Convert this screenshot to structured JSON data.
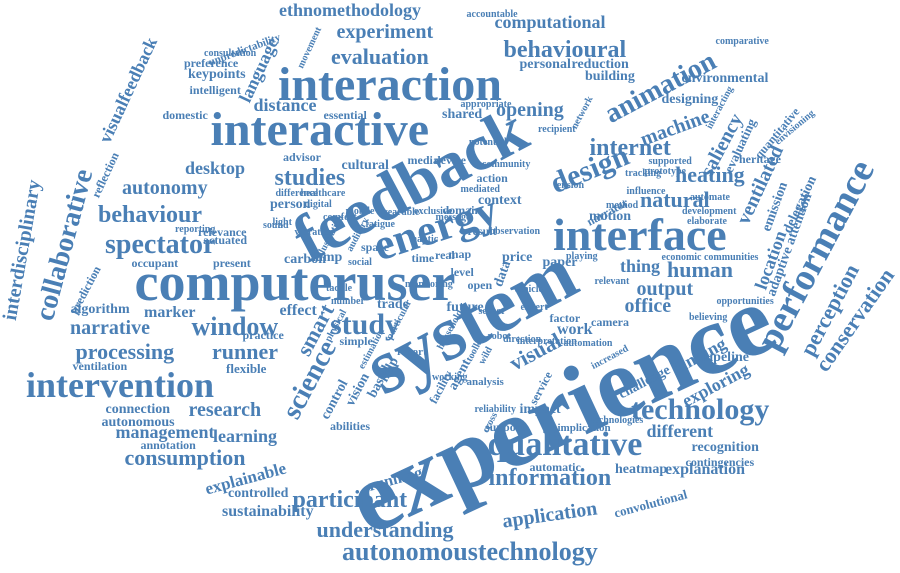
{
  "accent_color": "#4a7fb5",
  "background_color": "#ffffff",
  "words": [
    "experience",
    "system",
    "feedback",
    "interactive",
    "computeruser",
    "interaction",
    "interface",
    "energy",
    "design",
    "performance",
    "technology",
    "qualitative",
    "intervention",
    "autonomoustechnology",
    "spectator",
    "study",
    "science",
    "window",
    "processing",
    "runner",
    "behaviour",
    "information",
    "participant",
    "understanding",
    "consumption",
    "animation",
    "studies",
    "internet",
    "behavioural",
    "experiment",
    "evaluation",
    "ethnomethodology",
    "computational",
    "autonomy",
    "desktop",
    "distance",
    "natural",
    "heating",
    "machine",
    "human",
    "thing",
    "output",
    "office",
    "visual",
    "smart",
    "perception",
    "conservation",
    "collaborative",
    "interdisciplinary",
    "visualfeedback",
    "language",
    "narrative",
    "research",
    "management",
    "learning",
    "application",
    "sustainability",
    "explainable",
    "controlled",
    "running",
    "automatic",
    "explanation",
    "heatmap",
    "recognition",
    "different",
    "location",
    "ventilated",
    "saliency",
    "finding",
    "exploring",
    "pipeline",
    "challenge",
    "opening",
    "shared",
    "marker",
    "effect",
    "algorithm",
    "flexible",
    "ventilation",
    "connection",
    "autonomous",
    "annotation",
    "occupant",
    "present",
    "carbon",
    "lamp",
    "reflection",
    "keypoints",
    "preference",
    "intelligent",
    "unpredictability",
    "consultation",
    "personal",
    "reduction",
    "building",
    "environmental",
    "designing",
    "comparative",
    "accountable",
    "movement",
    "domestic",
    "essential",
    "cultural",
    "advisor",
    "person",
    "actuated",
    "relevance",
    "reporting",
    "price",
    "paper",
    "work",
    "camera",
    "factor",
    "implication",
    "support",
    "impact",
    "abilities",
    "trade",
    "future",
    "open",
    "control",
    "vision",
    "based",
    "help",
    "agent",
    "facility",
    "service",
    "practice",
    "prediction",
    "delegation",
    "adaptive attention",
    "emission",
    "quantitative",
    "heritage",
    "evaluating",
    "envisioning",
    "influence",
    "automate",
    "development",
    "elaborate",
    "supported",
    "prototype",
    "tracking",
    "economic communities",
    "relevant",
    "believing",
    "opportunities",
    "technologies",
    "contingencies",
    "convolutional",
    "increased",
    "motion",
    "narrator",
    "method",
    "potential",
    "recipient",
    "appropriate",
    "network",
    "interacting",
    "simple",
    "report",
    "analysis",
    "working",
    "media",
    "device",
    "context",
    "action",
    "tension",
    "number",
    "space",
    "real",
    "map",
    "time",
    "result",
    "level",
    "domain",
    "data",
    "comfort",
    "difference",
    "healthcare",
    "mediated",
    "mobile",
    "tactile",
    "social",
    "physical",
    "estimation",
    "community",
    "exclusive",
    "monitoring",
    "robot",
    "vehicle",
    "cross",
    "direction",
    "playing",
    "household",
    "toolkit",
    "reliability",
    "wearable",
    "fatigue",
    "digital",
    "auditory",
    "haptic",
    "expert",
    "automation",
    "sensor",
    "sound",
    "light",
    "vibration",
    "illustration",
    "message",
    "particular",
    "observation",
    "interpretation",
    "wild",
    "signal",
    "state",
    "effort",
    "tool"
  ]
}
